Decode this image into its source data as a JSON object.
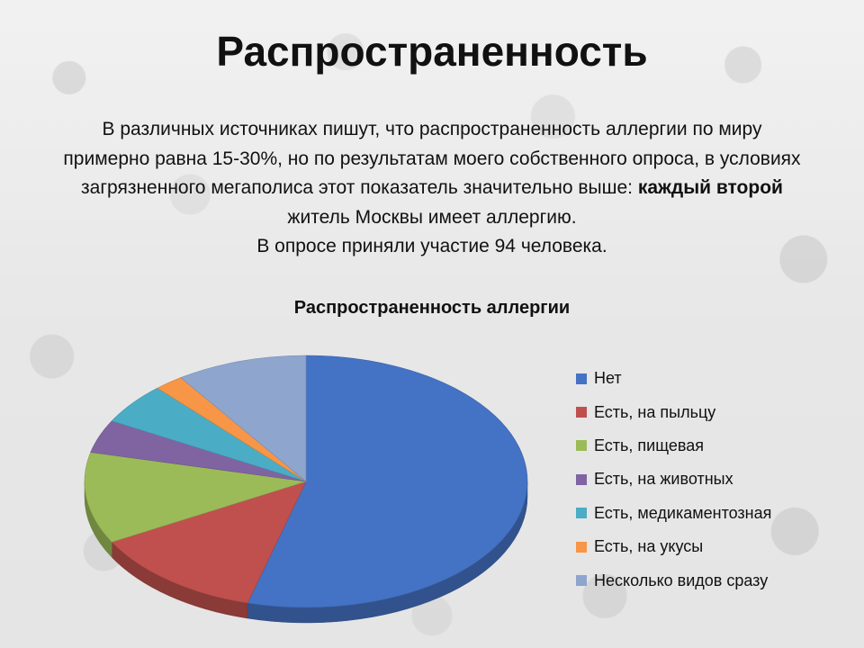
{
  "slide": {
    "title": "Распространенность",
    "intro": {
      "part1": "В различных источниках пишут, что распространенность аллергии по миру примерно равна 15-30%, но по результатам моего собственного опроса, в условиях загрязненного мегаполиса этот показатель значительно выше: ",
      "bold": "каждый второй",
      "part2": " житель Москвы имеет аллергию.",
      "line_last": "В опросе приняли участие 94 человека."
    }
  },
  "chart_data": {
    "type": "pie",
    "title": "Распространенность аллергии",
    "style": "3d",
    "legend_position": "right",
    "categories": [
      "Нет",
      "Есть, на пыльцу",
      "Есть, пищевая",
      "Есть, на животных",
      "Есть, медикаментозная",
      "Есть, на укусы",
      "Несколько видов сразу"
    ],
    "values": [
      51,
      12,
      11,
      4,
      5,
      2,
      9
    ],
    "colors": [
      "#4472C4",
      "#C0504D",
      "#9BBB59",
      "#8064A2",
      "#4BACC6",
      "#F79646",
      "#8EA5CE"
    ]
  }
}
